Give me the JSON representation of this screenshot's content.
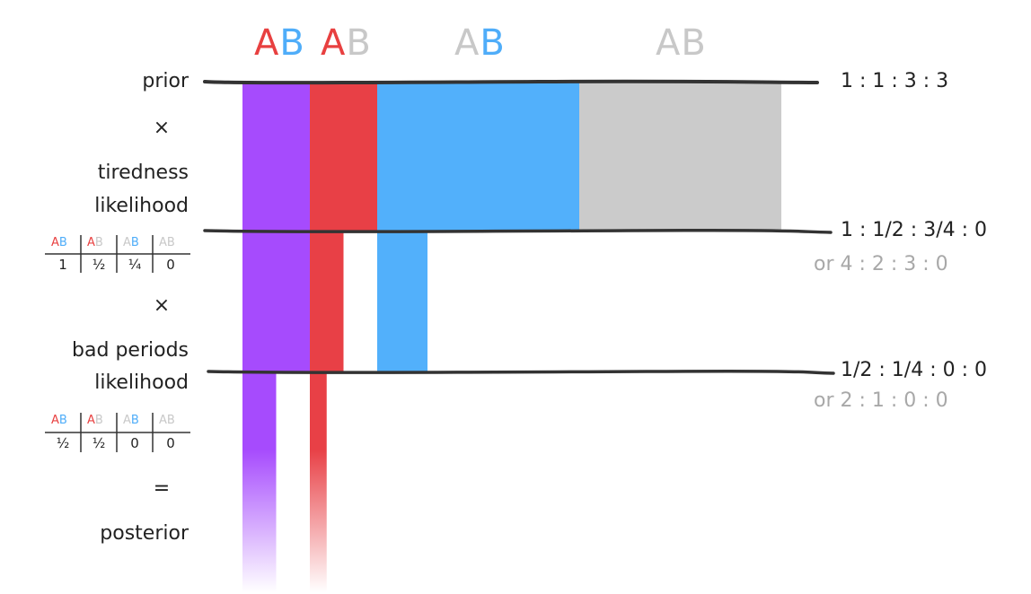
{
  "colors": {
    "a_letter": "#e84040",
    "b_letter": "#4fadf9",
    "faded_letter": "#c8c8c8",
    "purple": "#a64bfd",
    "red": "#e84046",
    "blue": "#52b0fb",
    "gray": "#cbcbcb",
    "line": "#333333"
  },
  "headers": [
    {
      "a": "A",
      "b": "B",
      "a_color": "a_letter",
      "b_color": "b_letter"
    },
    {
      "a": "A",
      "b": "B",
      "a_color": "a_letter",
      "b_color": "faded_letter"
    },
    {
      "a": "A",
      "b": "B",
      "a_color": "faded_letter",
      "b_color": "b_letter"
    },
    {
      "a": "A",
      "b": "B",
      "a_color": "faded_letter",
      "b_color": "faded_letter"
    }
  ],
  "steps": {
    "prior": "prior",
    "times_1": "×",
    "tiredness_1": "tiredness",
    "tiredness_2": "likelihood",
    "times_2": "×",
    "bad_1": "bad periods",
    "bad_2": "likelihood",
    "equals": "=",
    "posterior": "posterior"
  },
  "ratios": {
    "prior": "1 : 1 : 3 : 3",
    "after_tiredness": "1 : 1/2 : 3/4 : 0",
    "after_tiredness_alt": "or 4 : 2 : 3 : 0",
    "after_bad": "1/2 : 1/4 : 0 : 0",
    "after_bad_alt": "or 2 : 1 : 0 : 0"
  },
  "tiredness_table": {
    "headers": [
      {
        "a": "A",
        "b": "B",
        "a_color": "a_letter",
        "b_color": "b_letter"
      },
      {
        "a": "A",
        "b": "B",
        "a_color": "a_letter",
        "b_color": "faded_letter"
      },
      {
        "a": "A",
        "b": "B",
        "a_color": "faded_letter",
        "b_color": "b_letter"
      },
      {
        "a": "A",
        "b": "B",
        "a_color": "faded_letter",
        "b_color": "faded_letter"
      }
    ],
    "values": [
      "1",
      "½",
      "¼",
      "0"
    ]
  },
  "bad_periods_table": {
    "headers": [
      {
        "a": "A",
        "b": "B",
        "a_color": "a_letter",
        "b_color": "b_letter"
      },
      {
        "a": "A",
        "b": "B",
        "a_color": "a_letter",
        "b_color": "faded_letter"
      },
      {
        "a": "A",
        "b": "B",
        "a_color": "faded_letter",
        "b_color": "b_letter"
      },
      {
        "a": "A",
        "b": "B",
        "a_color": "faded_letter",
        "b_color": "faded_letter"
      }
    ],
    "values": [
      "½",
      "½",
      "0",
      "0"
    ]
  },
  "bars": {
    "prior_weights": [
      1,
      1,
      3,
      3
    ],
    "tiredness_likelihood": [
      1,
      0.5,
      0.25,
      0
    ],
    "bad_periods_likelihood": [
      0.5,
      0.5,
      0,
      0
    ]
  }
}
